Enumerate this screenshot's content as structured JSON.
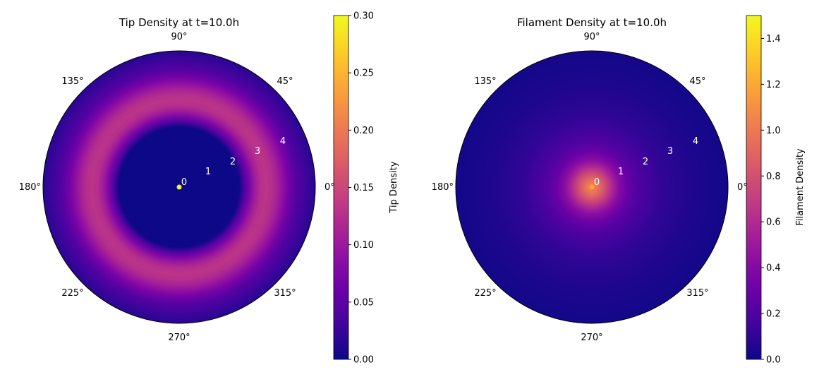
{
  "chart_data": [
    {
      "type": "heatmap",
      "projection": "polar",
      "title": "Tip Density at t=10.0h",
      "angle_ticks": [
        "0°",
        "45°",
        "90°",
        "135°",
        "180°",
        "225°",
        "270°",
        "315°"
      ],
      "radial_ticks": [
        "0",
        "1",
        "2",
        "3",
        "4"
      ],
      "rmax": 5,
      "colormap": "plasma",
      "colorbar": {
        "label": "Tip Density",
        "vmin": 0.0,
        "vmax": 0.3,
        "ticks": [
          "0.00",
          "0.05",
          "0.10",
          "0.15",
          "0.20",
          "0.25",
          "0.30"
        ]
      },
      "radial_profile": {
        "r": [
          0.0,
          0.3,
          0.6,
          1.0,
          1.5,
          2.0,
          2.2,
          2.4,
          2.6,
          2.8,
          3.0,
          3.2,
          3.4,
          3.6,
          3.8,
          4.0,
          4.3,
          4.6,
          5.0
        ],
        "value": [
          0.0,
          0.0,
          0.0,
          0.0,
          0.0,
          0.0,
          0.0,
          0.04,
          0.075,
          0.105,
          0.125,
          0.13,
          0.125,
          0.11,
          0.09,
          0.07,
          0.045,
          0.03,
          0.015
        ]
      },
      "center_marker": {
        "r": 0,
        "value": 0.3
      }
    },
    {
      "type": "heatmap",
      "projection": "polar",
      "title": "Filament Density at t=10.0h",
      "angle_ticks": [
        "0°",
        "45°",
        "90°",
        "135°",
        "180°",
        "225°",
        "270°",
        "315°"
      ],
      "radial_ticks": [
        "0",
        "1",
        "2",
        "3",
        "4"
      ],
      "rmax": 5,
      "colormap": "plasma",
      "colorbar": {
        "label": "Filament Density",
        "vmin": 0.0,
        "vmax": 1.5,
        "ticks": [
          "0.0",
          "0.2",
          "0.4",
          "0.6",
          "0.8",
          "1.0",
          "1.2",
          "1.4"
        ]
      },
      "radial_profile": {
        "r": [
          0.0,
          0.2,
          0.4,
          0.6,
          0.8,
          1.0,
          1.3,
          1.6,
          2.0,
          2.5,
          3.0,
          3.5,
          4.0,
          4.5,
          5.0
        ],
        "value": [
          1.05,
          0.98,
          0.85,
          0.7,
          0.55,
          0.42,
          0.3,
          0.22,
          0.16,
          0.11,
          0.08,
          0.06,
          0.04,
          0.03,
          0.02
        ]
      },
      "center_marker": {
        "r": 0,
        "value": 1.05
      }
    }
  ]
}
